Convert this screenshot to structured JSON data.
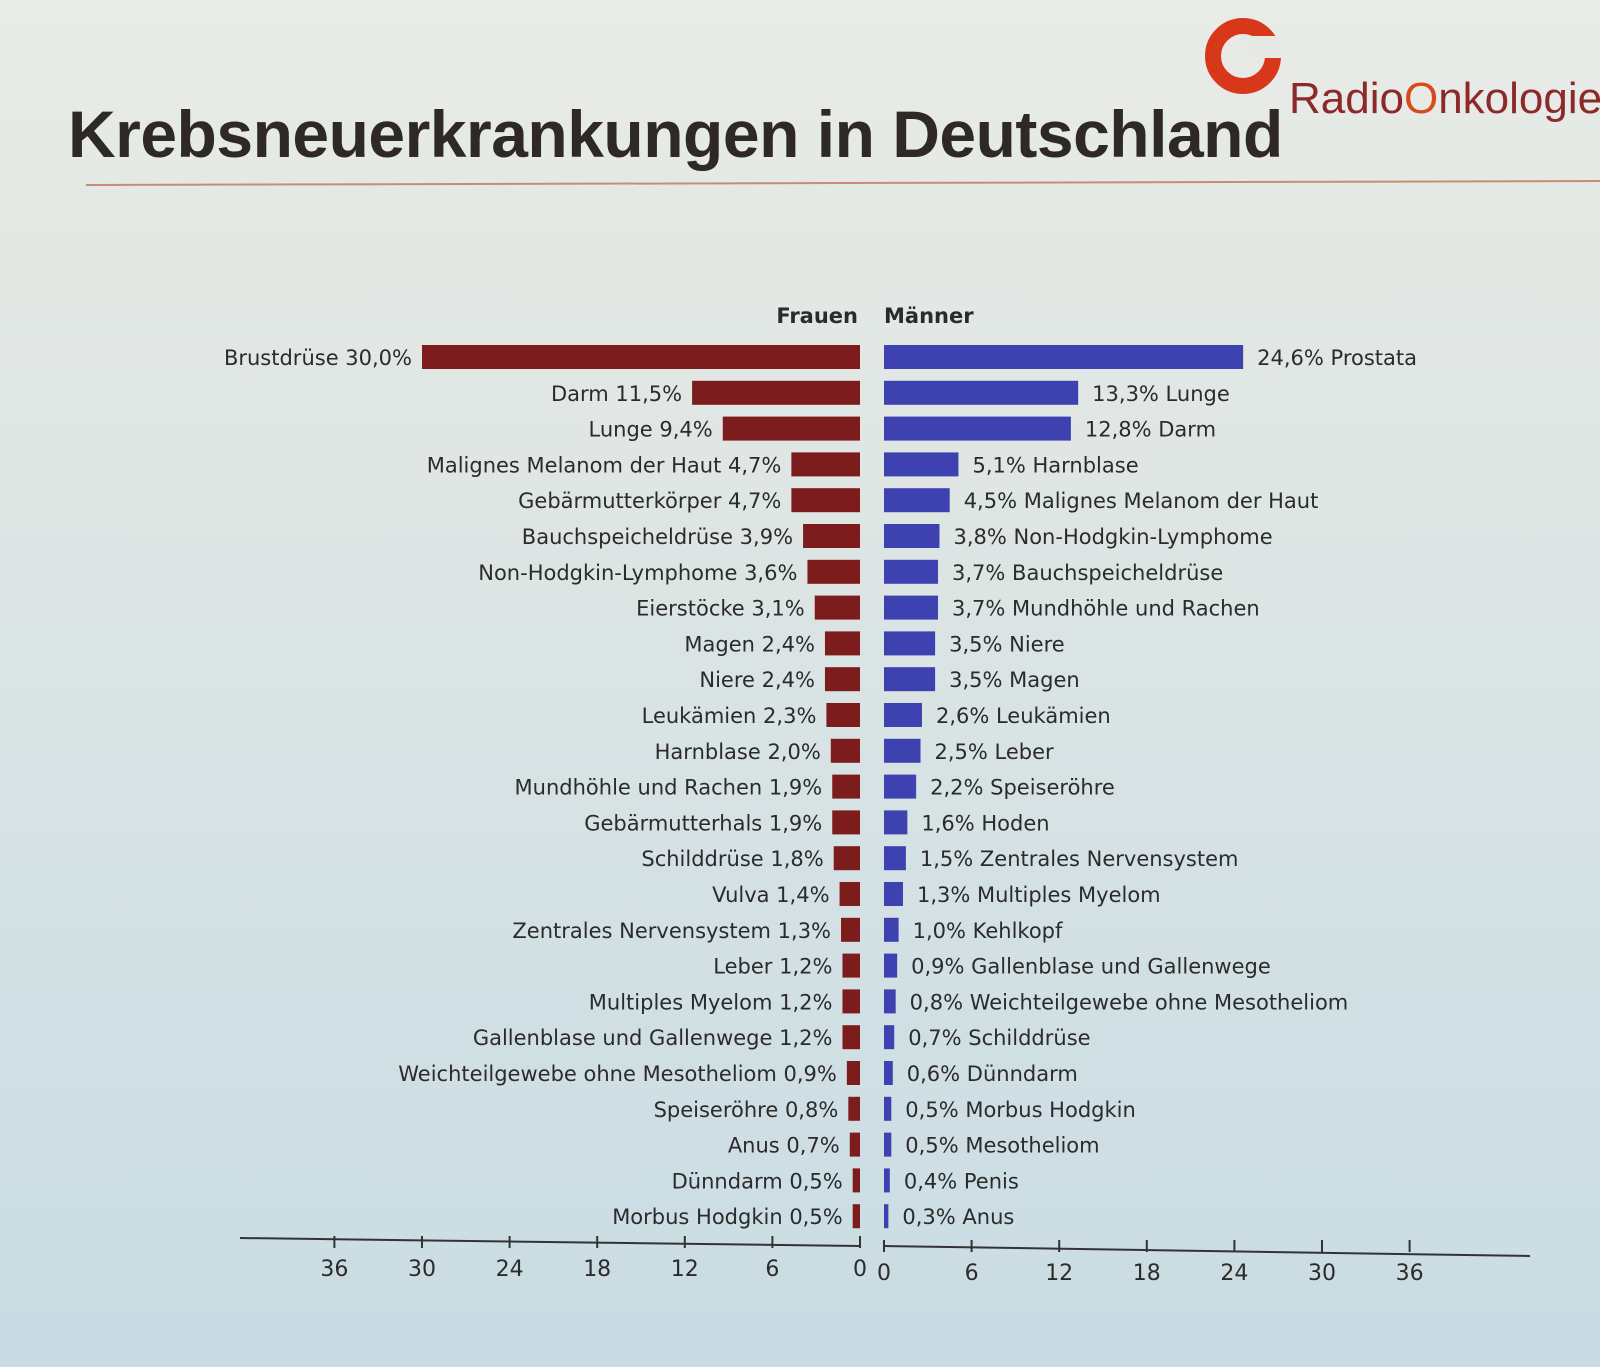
{
  "slide": {
    "title": "Krebsneuerkrankungen in Deutschland",
    "logo_text_prefix": "Radio",
    "logo_text_highlight": "O",
    "logo_text_suffix": "nkologieN"
  },
  "chart_data": {
    "type": "bar",
    "orientation": "horizontal-butterfly",
    "colors": {
      "frauen": "#7d1c1c",
      "maenner": "#3e42b0",
      "logo_ring": "#d8381a"
    },
    "xlim": [
      0,
      36
    ],
    "ticks": [
      "0",
      "6",
      "12",
      "18",
      "24",
      "30",
      "36"
    ],
    "series": [
      {
        "name": "Frauen",
        "items": [
          {
            "label": "Brustdrüse 30,0%",
            "value": 30.0
          },
          {
            "label": "Darm 11,5%",
            "value": 11.5
          },
          {
            "label": "Lunge 9,4%",
            "value": 9.4
          },
          {
            "label": "Malignes Melanom der Haut 4,7%",
            "value": 4.7
          },
          {
            "label": "Gebärmutterkörper 4,7%",
            "value": 4.7
          },
          {
            "label": "Bauchspeicheldrüse 3,9%",
            "value": 3.9
          },
          {
            "label": "Non-Hodgkin-Lymphome 3,6%",
            "value": 3.6
          },
          {
            "label": "Eierstöcke 3,1%",
            "value": 3.1
          },
          {
            "label": "Magen 2,4%",
            "value": 2.4
          },
          {
            "label": "Niere 2,4%",
            "value": 2.4
          },
          {
            "label": "Leukämien 2,3%",
            "value": 2.3
          },
          {
            "label": "Harnblase 2,0%",
            "value": 2.0
          },
          {
            "label": "Mundhöhle und Rachen 1,9%",
            "value": 1.9
          },
          {
            "label": "Gebärmutterhals 1,9%",
            "value": 1.9
          },
          {
            "label": "Schilddrüse 1,8%",
            "value": 1.8
          },
          {
            "label": "Vulva 1,4%",
            "value": 1.4
          },
          {
            "label": "Zentrales Nervensystem 1,3%",
            "value": 1.3
          },
          {
            "label": "Leber 1,2%",
            "value": 1.2
          },
          {
            "label": "Multiples Myelom 1,2%",
            "value": 1.2
          },
          {
            "label": "Gallenblase und Gallenwege 1,2%",
            "value": 1.2
          },
          {
            "label": "Weichteilgewebe ohne Mesotheliom 0,9%",
            "value": 0.9
          },
          {
            "label": "Speiseröhre 0,8%",
            "value": 0.8
          },
          {
            "label": "Anus 0,7%",
            "value": 0.7
          },
          {
            "label": "Dünndarm 0,5%",
            "value": 0.5
          },
          {
            "label": "Morbus Hodgkin 0,5%",
            "value": 0.5
          }
        ]
      },
      {
        "name": "Männer",
        "items": [
          {
            "label": "24,6% Prostata",
            "value": 24.6
          },
          {
            "label": "13,3% Lunge",
            "value": 13.3
          },
          {
            "label": "12,8% Darm",
            "value": 12.8
          },
          {
            "label": "5,1% Harnblase",
            "value": 5.1
          },
          {
            "label": "4,5% Malignes Melanom der Haut",
            "value": 4.5
          },
          {
            "label": "3,8% Non-Hodgkin-Lymphome",
            "value": 3.8
          },
          {
            "label": "3,7% Bauchspeicheldrüse",
            "value": 3.7
          },
          {
            "label": "3,7% Mundhöhle und Rachen",
            "value": 3.7
          },
          {
            "label": "3,5% Niere",
            "value": 3.5
          },
          {
            "label": "3,5% Magen",
            "value": 3.5
          },
          {
            "label": "2,6% Leukämien",
            "value": 2.6
          },
          {
            "label": "2,5% Leber",
            "value": 2.5
          },
          {
            "label": "2,2% Speiseröhre",
            "value": 2.2
          },
          {
            "label": "1,6% Hoden",
            "value": 1.6
          },
          {
            "label": "1,5% Zentrales Nervensystem",
            "value": 1.5
          },
          {
            "label": "1,3% Multiples Myelom",
            "value": 1.3
          },
          {
            "label": "1,0% Kehlkopf",
            "value": 1.0
          },
          {
            "label": "0,9% Gallenblase und Gallenwege",
            "value": 0.9
          },
          {
            "label": "0,8% Weichteilgewebe ohne Mesotheliom",
            "value": 0.8
          },
          {
            "label": "0,7% Schilddrüse",
            "value": 0.7
          },
          {
            "label": "0,6% Dünndarm",
            "value": 0.6
          },
          {
            "label": "0,5% Morbus Hodgkin",
            "value": 0.5
          },
          {
            "label": "0,5% Mesotheliom",
            "value": 0.5
          },
          {
            "label": "0,4% Penis",
            "value": 0.4
          },
          {
            "label": "0,3% Anus",
            "value": 0.3
          }
        ]
      }
    ]
  }
}
